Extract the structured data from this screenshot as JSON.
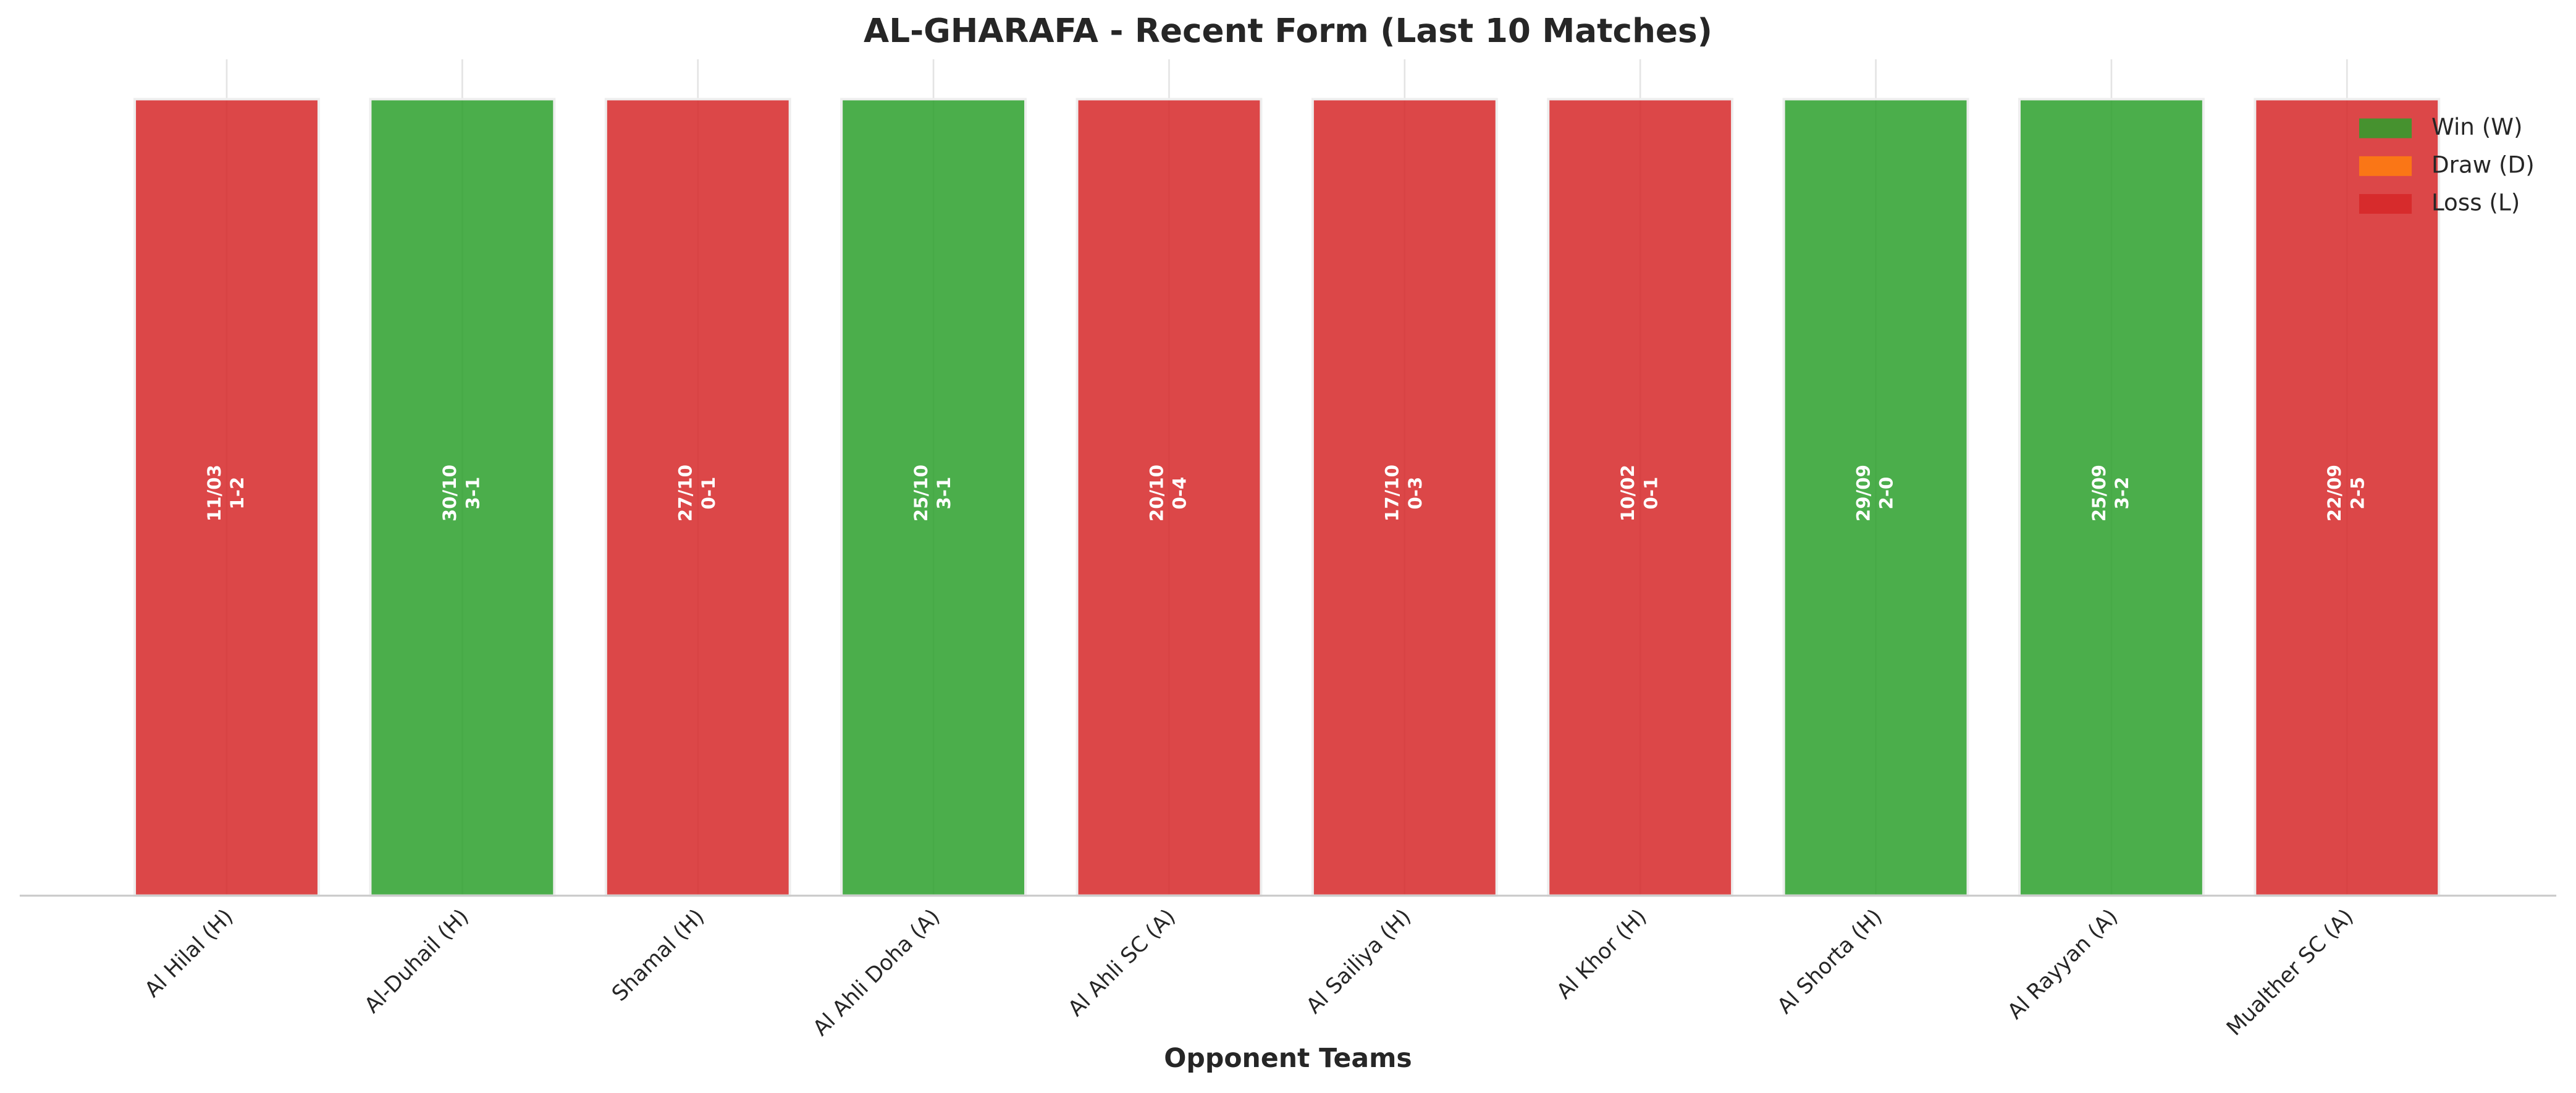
{
  "chart_data": {
    "type": "bar",
    "title": "AL-GHARAFA - Recent Form (Last 10 Matches)",
    "xlabel": "Opponent Teams",
    "categories": [
      "Al Hilal (H)",
      "Al-Duhail (H)",
      "Shamal (H)",
      "Al Ahli Doha (A)",
      "Al Ahli SC (A)",
      "Al Sailiya (H)",
      "Al Khor (H)",
      "Al Shorta (H)",
      "Al Rayyan (A)",
      "Mualther SC (A)"
    ],
    "values": [
      1,
      1,
      1,
      1,
      1,
      1,
      1,
      1,
      1,
      1
    ],
    "results": [
      "L",
      "W",
      "L",
      "W",
      "L",
      "L",
      "L",
      "W",
      "W",
      "L"
    ],
    "dates": [
      "11/03",
      "30/10",
      "27/10",
      "25/10",
      "20/10",
      "17/10",
      "10/02",
      "29/09",
      "25/09",
      "22/09"
    ],
    "scores": [
      "1-2",
      "3-1",
      "0-1",
      "3-1",
      "0-4",
      "0-3",
      "0-1",
      "2-0",
      "3-2",
      "2-5"
    ],
    "ylim": [
      0,
      1.05
    ],
    "grid": true,
    "legend_position": "upper right",
    "series": [
      {
        "name": "Win (W)",
        "result": "W",
        "color": "#2ca02c"
      },
      {
        "name": "Draw (D)",
        "result": "D",
        "color": "#ff7f0e"
      },
      {
        "name": "Loss (L)",
        "result": "L",
        "color": "#d62728"
      }
    ]
  }
}
